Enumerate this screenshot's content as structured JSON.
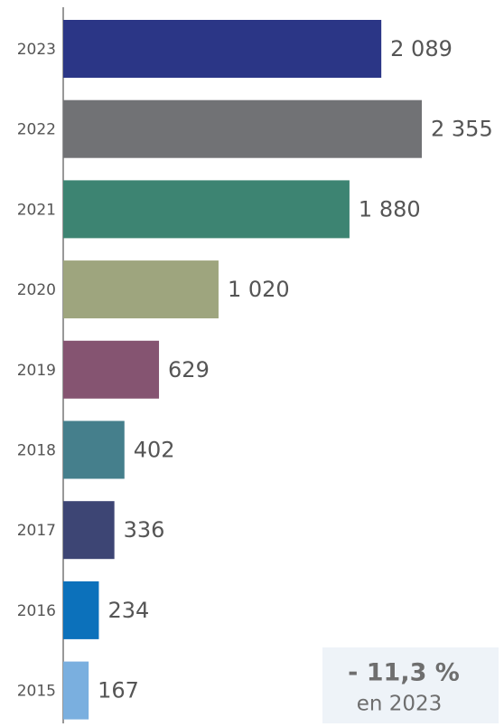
{
  "chart_data": {
    "type": "bar",
    "orientation": "horizontal",
    "categories": [
      "2023",
      "2022",
      "2021",
      "2020",
      "2019",
      "2018",
      "2017",
      "2016",
      "2015"
    ],
    "values": [
      2089,
      2355,
      1880,
      1020,
      629,
      402,
      336,
      234,
      167
    ],
    "value_labels": [
      "2 089",
      "2 355",
      "1 880",
      "1 020",
      "629",
      "402",
      "336",
      "234",
      "167"
    ],
    "colors": [
      "#2b3686",
      "#717275",
      "#3d8472",
      "#9ea57e",
      "#855471",
      "#457f8c",
      "#3d4574",
      "#0c71bb",
      "#7aafdf"
    ],
    "annotation": {
      "value": "- 11,3 %",
      "text": "en 2023"
    }
  }
}
